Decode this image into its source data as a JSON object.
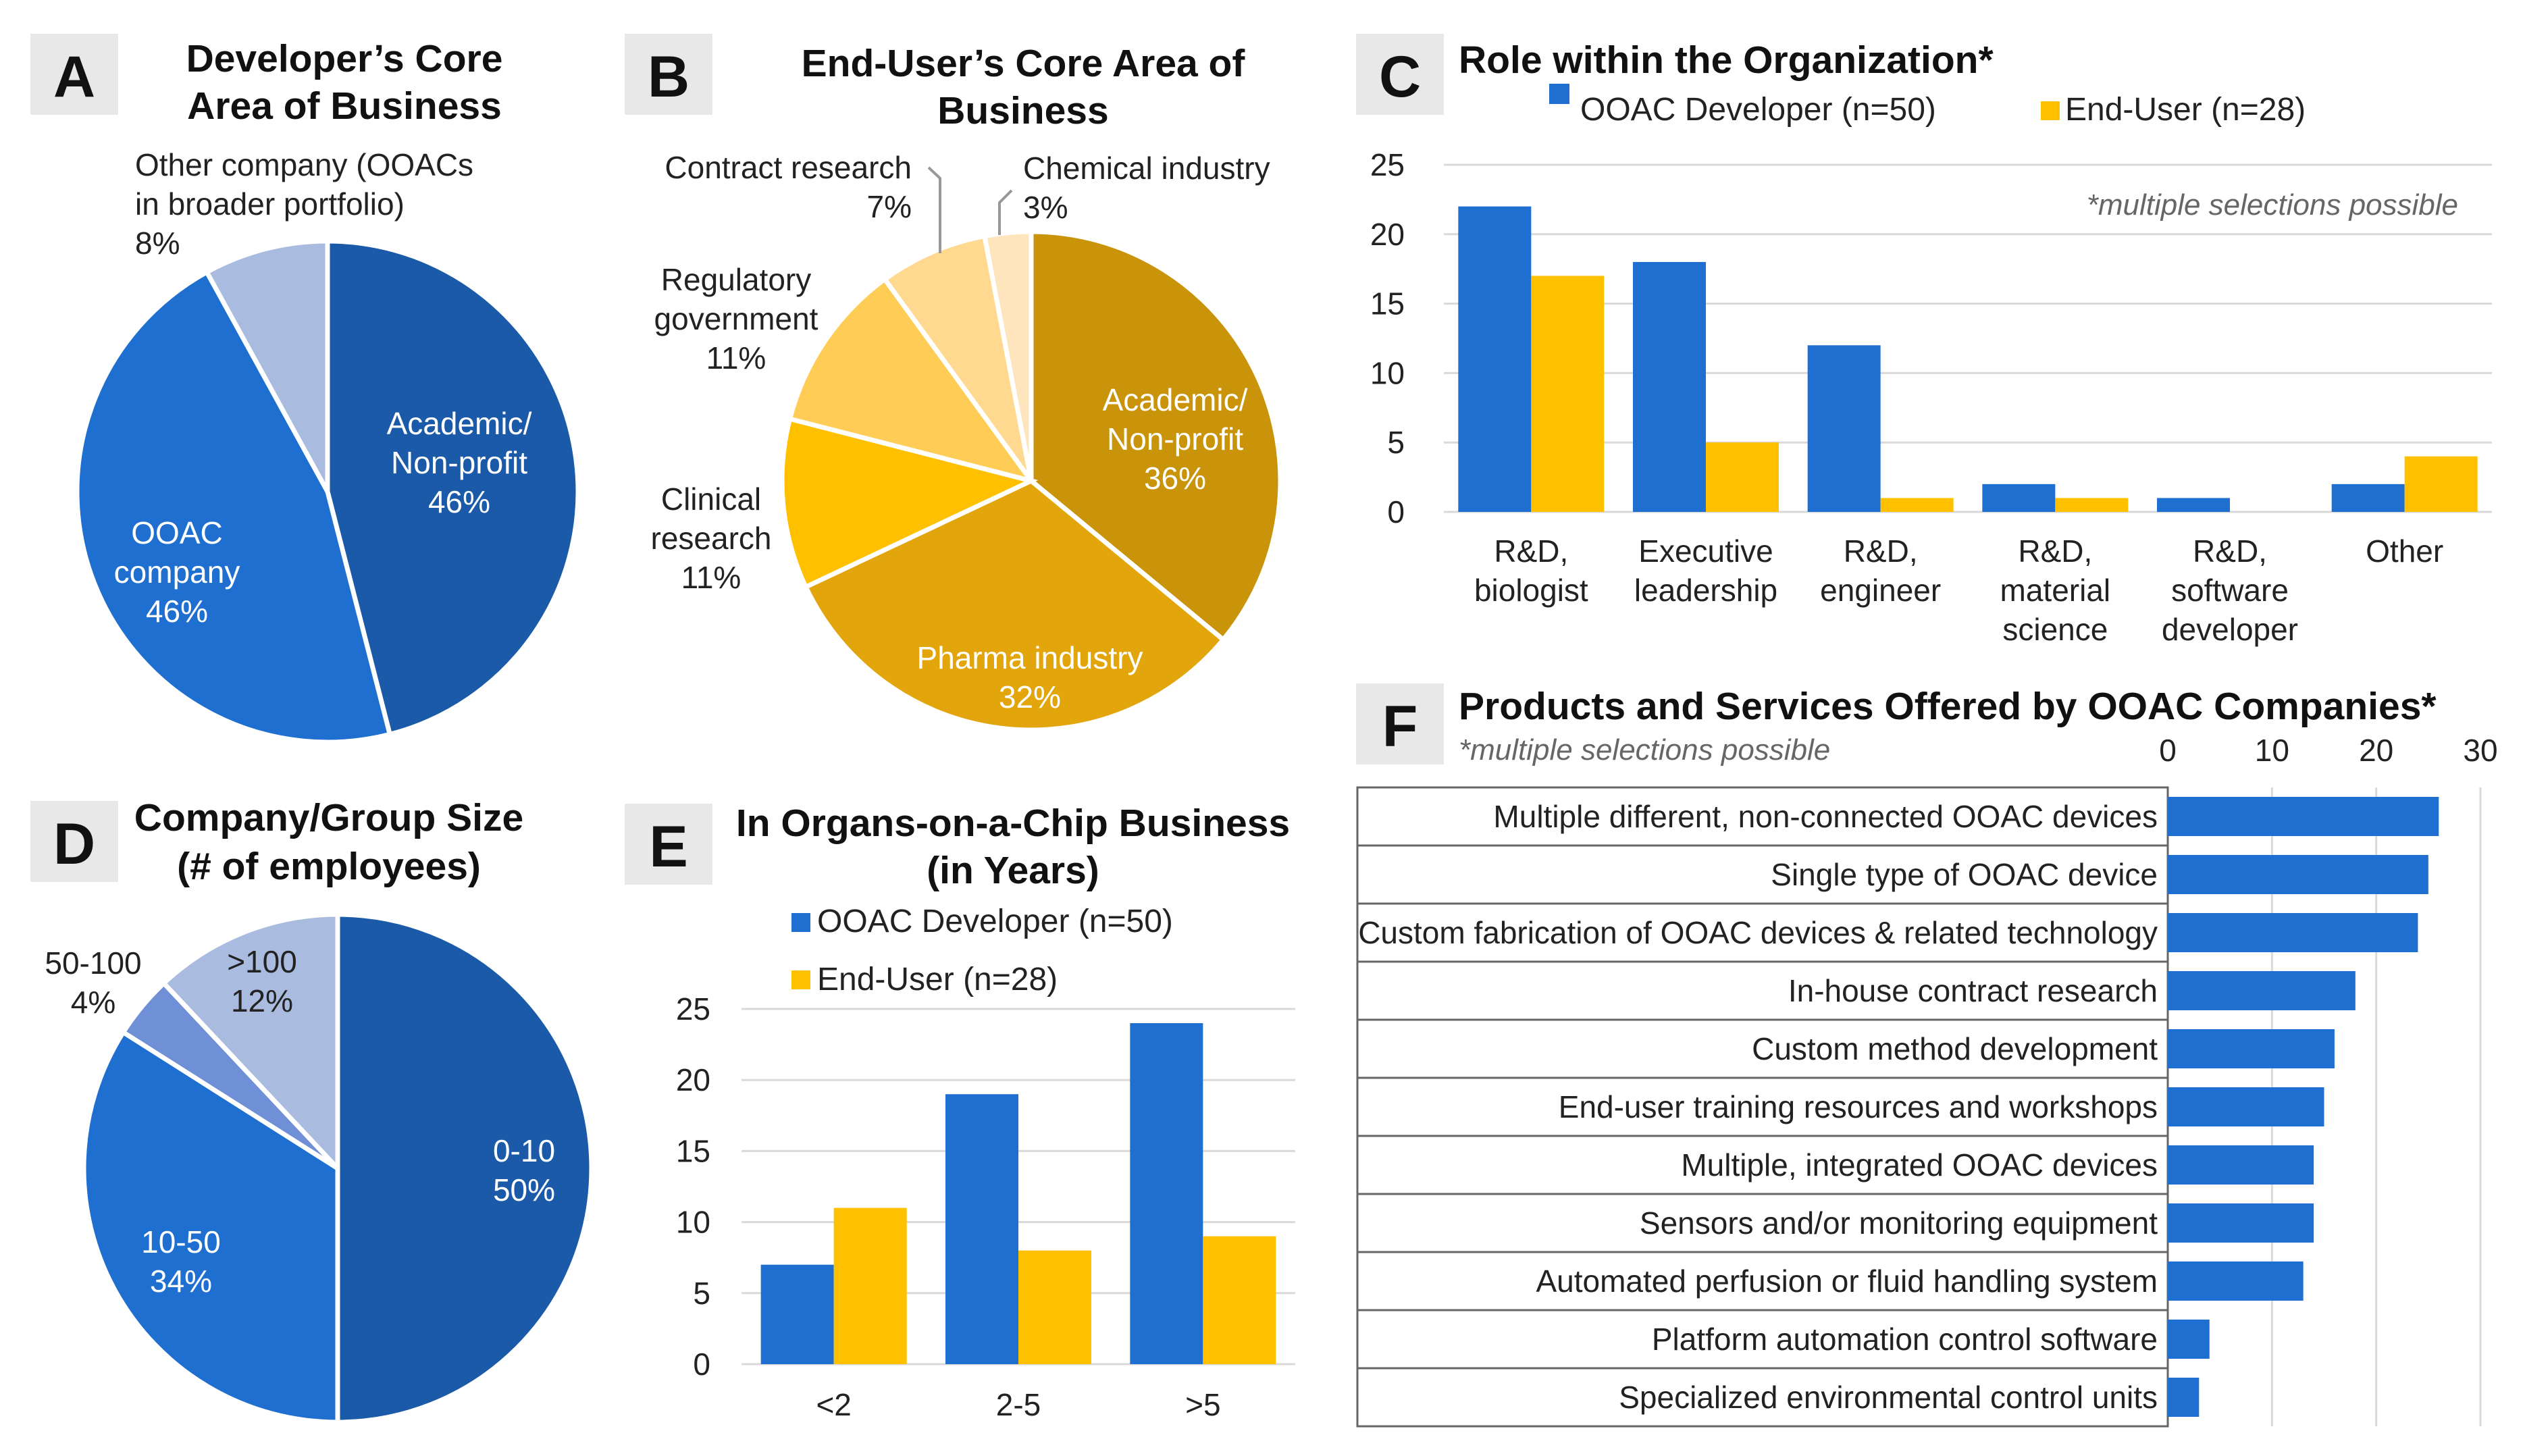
{
  "colors": {
    "blue": "#1f6fd0",
    "yellow": "#ffc000",
    "grid": "#d9d9d9",
    "label_bg": "#e8e8e8"
  },
  "legend": {
    "developer": "OOAC Developer (n=50)",
    "enduser": "End-User (n=28)"
  },
  "chart_data": [
    {
      "id": "A",
      "type": "pie",
      "title_lines": [
        "Developer’s Core",
        "Area of Business"
      ],
      "slices": [
        {
          "label_lines": [
            "Academic/",
            "Non-profit",
            "46%"
          ],
          "value": 46,
          "color": "#1b5aa8"
        },
        {
          "label_lines": [
            "OOAC",
            "company",
            "46%"
          ],
          "value": 46,
          "color": "#1f6fd0"
        },
        {
          "label_lines": [
            "Other company (OOACs",
            "in broader portfolio)",
            "8%"
          ],
          "value": 8,
          "color": "#a9bcdf"
        }
      ]
    },
    {
      "id": "B",
      "type": "pie",
      "title_lines": [
        "End-User’s Core Area of",
        "Business"
      ],
      "slices": [
        {
          "label_lines": [
            "Academic/",
            "Non-profit",
            "36%"
          ],
          "value": 36,
          "color": "#c9930a"
        },
        {
          "label_lines": [
            "Pharma industry",
            "32%"
          ],
          "value": 32,
          "color": "#e3a50c"
        },
        {
          "label_lines": [
            "Clinical",
            "research",
            "11%"
          ],
          "value": 11,
          "color": "#ffc000"
        },
        {
          "label_lines": [
            "Regulatory",
            "government",
            "11%"
          ],
          "value": 11,
          "color": "#ffcc55"
        },
        {
          "label_lines": [
            "Contract research",
            "7%"
          ],
          "value": 7,
          "color": "#ffd98f"
        },
        {
          "label_lines": [
            "Chemical industry",
            "3%"
          ],
          "value": 3,
          "color": "#ffe5bd"
        }
      ]
    },
    {
      "id": "C",
      "type": "bar",
      "title": "Role within the Organization*",
      "note": "*multiple selections possible",
      "categories": [
        [
          "R&D,",
          "biologist"
        ],
        [
          "Executive",
          "leadership"
        ],
        [
          "R&D,",
          "engineer"
        ],
        [
          "R&D,",
          "material",
          "science"
        ],
        [
          "R&D,",
          "software",
          "developer"
        ],
        [
          "Other"
        ]
      ],
      "series": [
        {
          "name": "OOAC Developer (n=50)",
          "values": [
            22,
            18,
            12,
            2,
            1,
            2
          ]
        },
        {
          "name": "End-User (n=28)",
          "values": [
            17,
            5,
            1,
            1,
            0,
            4
          ]
        }
      ],
      "ylim": [
        0,
        25
      ],
      "yticks": [
        0,
        5,
        10,
        15,
        20,
        25
      ]
    },
    {
      "id": "D",
      "type": "pie",
      "title_lines": [
        "Company/Group Size",
        "(# of employees)"
      ],
      "slices": [
        {
          "label_lines": [
            "0-10",
            "50%"
          ],
          "value": 50,
          "color": "#1b5aa8"
        },
        {
          "label_lines": [
            "10-50",
            "34%"
          ],
          "value": 34,
          "color": "#1f6fd0"
        },
        {
          "label_lines": [
            "50-100",
            "4%"
          ],
          "value": 4,
          "color": "#6f8fd6"
        },
        {
          "label_lines": [
            ">100",
            "12%"
          ],
          "value": 12,
          "color": "#a9bcdf"
        }
      ]
    },
    {
      "id": "E",
      "type": "bar",
      "title_lines": [
        "In Organs-on-a-Chip Business",
        "(in Years)"
      ],
      "categories": [
        "<2",
        "2-5",
        ">5"
      ],
      "series": [
        {
          "name": "OOAC Developer (n=50)",
          "values": [
            7,
            19,
            24
          ]
        },
        {
          "name": "End-User (n=28)",
          "values": [
            11,
            8,
            9
          ]
        }
      ],
      "ylim": [
        0,
        25
      ],
      "yticks": [
        0,
        5,
        10,
        15,
        20,
        25
      ]
    },
    {
      "id": "F",
      "type": "bar",
      "orientation": "horizontal",
      "title": "Products and Services Offered by OOAC Companies*",
      "note": "*multiple selections possible",
      "categories": [
        "Multiple different, non-connected OOAC devices",
        "Single type of OOAC device",
        "Custom fabrication of OOAC devices & related technology",
        "In-house contract research",
        "Custom method development",
        "End-user training resources and workshops",
        "Multiple, integrated OOAC devices",
        "Sensors and/or monitoring equipment",
        "Automated perfusion or fluid handling system",
        "Platform automation control software",
        "Specialized environmental control units"
      ],
      "values": [
        26,
        25,
        24,
        18,
        16,
        15,
        14,
        14,
        13,
        4,
        3
      ],
      "xlim": [
        0,
        30
      ],
      "xticks": [
        0,
        10,
        20,
        30
      ]
    }
  ]
}
